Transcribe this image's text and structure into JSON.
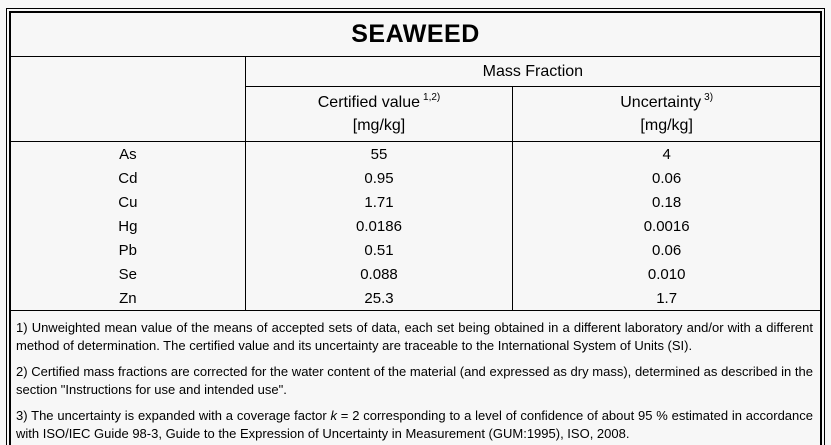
{
  "title": "SEAWEED",
  "colors": {
    "border": "#000000",
    "background": "#f7f7f7",
    "text": "#000000"
  },
  "table": {
    "group_header": "Mass Fraction",
    "columns": [
      {
        "label": "Certified value",
        "sup": "1,2)",
        "unit": "[mg/kg]"
      },
      {
        "label": "Uncertainty",
        "sup": "3)",
        "unit": "[mg/kg]"
      }
    ],
    "rows": [
      {
        "element": "As",
        "certified_value": "55",
        "uncertainty": "4"
      },
      {
        "element": "Cd",
        "certified_value": "0.95",
        "uncertainty": "0.06"
      },
      {
        "element": "Cu",
        "certified_value": "1.71",
        "uncertainty": "0.18"
      },
      {
        "element": "Hg",
        "certified_value": "0.0186",
        "uncertainty": "0.0016"
      },
      {
        "element": "Pb",
        "certified_value": "0.51",
        "uncertainty": "0.06"
      },
      {
        "element": "Se",
        "certified_value": "0.088",
        "uncertainty": "0.010"
      },
      {
        "element": "Zn",
        "certified_value": "25.3",
        "uncertainty": "1.7"
      }
    ]
  },
  "footnotes": {
    "f1": "1) Unweighted mean value of the means of accepted sets of data, each set being obtained in a different laboratory and/or with a different method of determination. The certified value and its uncertainty are traceable to the International System of Units (SI).",
    "f2": "2) Certified mass fractions are corrected for the water content of the material (and expressed as dry mass), determined as described in the section \"Instructions for use and intended use\".",
    "f3_parts": [
      "3) The uncertainty is expanded with a coverage factor ",
      "k",
      " = 2 corresponding to a level of confidence of about 95 % estimated in accordance with ISO/IEC Guide 98-3, Guide to the Expression of Uncertainty in Measurement (GUM:1995), ISO, 2008."
    ]
  }
}
